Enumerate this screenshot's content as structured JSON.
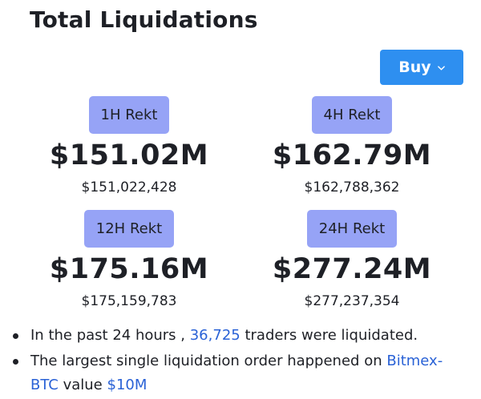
{
  "page": {
    "title": "Total Liquidations"
  },
  "buy_button": {
    "label": "Buy",
    "icon": "chevron-down-icon",
    "color": "#2e8ff0"
  },
  "stats": [
    {
      "badge": "1H Rekt",
      "total_short": "$151.02M",
      "total_exact": "$151,022,428"
    },
    {
      "badge": "4H Rekt",
      "total_short": "$162.79M",
      "total_exact": "$162,788,362"
    },
    {
      "badge": "12H Rekt",
      "total_short": "$175.16M",
      "total_exact": "$175,159,783"
    },
    {
      "badge": "24H Rekt",
      "total_short": "$277.24M",
      "total_exact": "$277,237,354"
    }
  ],
  "badge_color": "#96a3f6",
  "notes": {
    "line1": {
      "prefix": "In the past 24 hours ,",
      "count": "36,725",
      "suffix": "traders were liquidated."
    },
    "line2": {
      "prefix": "The largest single liquidation order happened on",
      "exchange": "Bitmex-BTC",
      "middle": "value",
      "amount": "$10M"
    }
  },
  "link_color": "#2a62d6"
}
